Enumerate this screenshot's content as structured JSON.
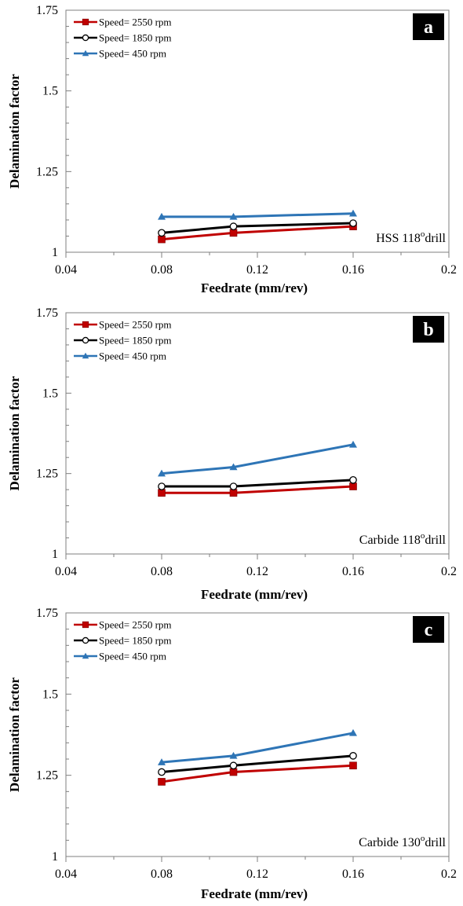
{
  "chart_data": [
    {
      "type": "line",
      "badge": "a",
      "drill_label": "HSS 118",
      "drill_label_sup": "o",
      "drill_label_suffix": "drill",
      "xlabel": "Feedrate (mm/rev)",
      "ylabel": "Delamination factor",
      "xlim": [
        0.04,
        0.2
      ],
      "ylim": [
        1,
        1.75
      ],
      "x_ticks": [
        "0.04",
        "0.08",
        "0.12",
        "0.16",
        "0.2"
      ],
      "y_ticks": [
        "1",
        "1.25",
        "1.5",
        "1.75"
      ],
      "grid": false,
      "legend_position": "top-left",
      "series": [
        {
          "name": "Speed= 2550 rpm",
          "marker": "square",
          "color": "#c00000",
          "x": [
            0.08,
            0.11,
            0.16
          ],
          "values": [
            1.04,
            1.06,
            1.08
          ]
        },
        {
          "name": "Speed= 1850 rpm",
          "marker": "circle",
          "color": "#000000",
          "x": [
            0.08,
            0.11,
            0.16
          ],
          "values": [
            1.06,
            1.08,
            1.09
          ]
        },
        {
          "name": "Speed= 450 rpm",
          "marker": "triangle",
          "color": "#2e75b6",
          "x": [
            0.08,
            0.11,
            0.16
          ],
          "values": [
            1.11,
            1.11,
            1.12
          ]
        }
      ]
    },
    {
      "type": "line",
      "badge": "b",
      "drill_label": "Carbide 118",
      "drill_label_sup": "o",
      "drill_label_suffix": "drill",
      "xlabel": "Feedrate (mm/rev)",
      "ylabel": "Delamination factor",
      "xlim": [
        0.04,
        0.2
      ],
      "ylim": [
        1,
        1.75
      ],
      "x_ticks": [
        "0.04",
        "0.08",
        "0.12",
        "0.16",
        "0.2"
      ],
      "y_ticks": [
        "1",
        "1.25",
        "1.5",
        "1.75"
      ],
      "grid": false,
      "legend_position": "top-left",
      "series": [
        {
          "name": "Speed= 2550 rpm",
          "marker": "square",
          "color": "#c00000",
          "x": [
            0.08,
            0.11,
            0.16
          ],
          "values": [
            1.19,
            1.19,
            1.21
          ]
        },
        {
          "name": "Speed= 1850 rpm",
          "marker": "circle",
          "color": "#000000",
          "x": [
            0.08,
            0.11,
            0.16
          ],
          "values": [
            1.21,
            1.21,
            1.23
          ]
        },
        {
          "name": "Speed= 450 rpm",
          "marker": "triangle",
          "color": "#2e75b6",
          "x": [
            0.08,
            0.11,
            0.16
          ],
          "values": [
            1.25,
            1.27,
            1.34
          ]
        }
      ]
    },
    {
      "type": "line",
      "badge": "c",
      "drill_label": "Carbide 130",
      "drill_label_sup": "o",
      "drill_label_suffix": "drill",
      "xlabel": "Feedrate (mm/rev)",
      "ylabel": "Delamination factor",
      "xlim": [
        0.04,
        0.2
      ],
      "ylim": [
        1,
        1.75
      ],
      "x_ticks": [
        "0.04",
        "0.08",
        "0.12",
        "0.16",
        "0.2"
      ],
      "y_ticks": [
        "1",
        "1.25",
        "1.5",
        "1.75"
      ],
      "grid": false,
      "legend_position": "top-left",
      "series": [
        {
          "name": "Speed= 2550 rpm",
          "marker": "square",
          "color": "#c00000",
          "x": [
            0.08,
            0.11,
            0.16
          ],
          "values": [
            1.23,
            1.26,
            1.28
          ]
        },
        {
          "name": "Speed= 1850 rpm",
          "marker": "circle",
          "color": "#000000",
          "x": [
            0.08,
            0.11,
            0.16
          ],
          "values": [
            1.26,
            1.28,
            1.31
          ]
        },
        {
          "name": "Speed= 450 rpm",
          "marker": "triangle",
          "color": "#2e75b6",
          "x": [
            0.08,
            0.11,
            0.16
          ],
          "values": [
            1.29,
            1.31,
            1.38
          ]
        }
      ]
    }
  ]
}
